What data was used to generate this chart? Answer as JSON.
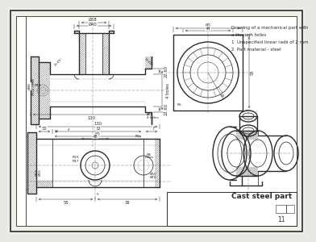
{
  "bg_color": "#e8e8e4",
  "paper_color": "#f0efe8",
  "line_color": "#2a2a2a",
  "dim_color": "#2a2a2a",
  "hatch_color": "#555555",
  "center_color": "#777777",
  "title_box_text": "Cast steel part",
  "title_number": "11",
  "notes": [
    "Drawing of a mechanical part with",
    "a through holes",
    "1  Unspecified linear radii of 2 mm",
    "2  Part material - steel"
  ],
  "font_size_dim": 3.8,
  "font_size_notes": 4.0
}
